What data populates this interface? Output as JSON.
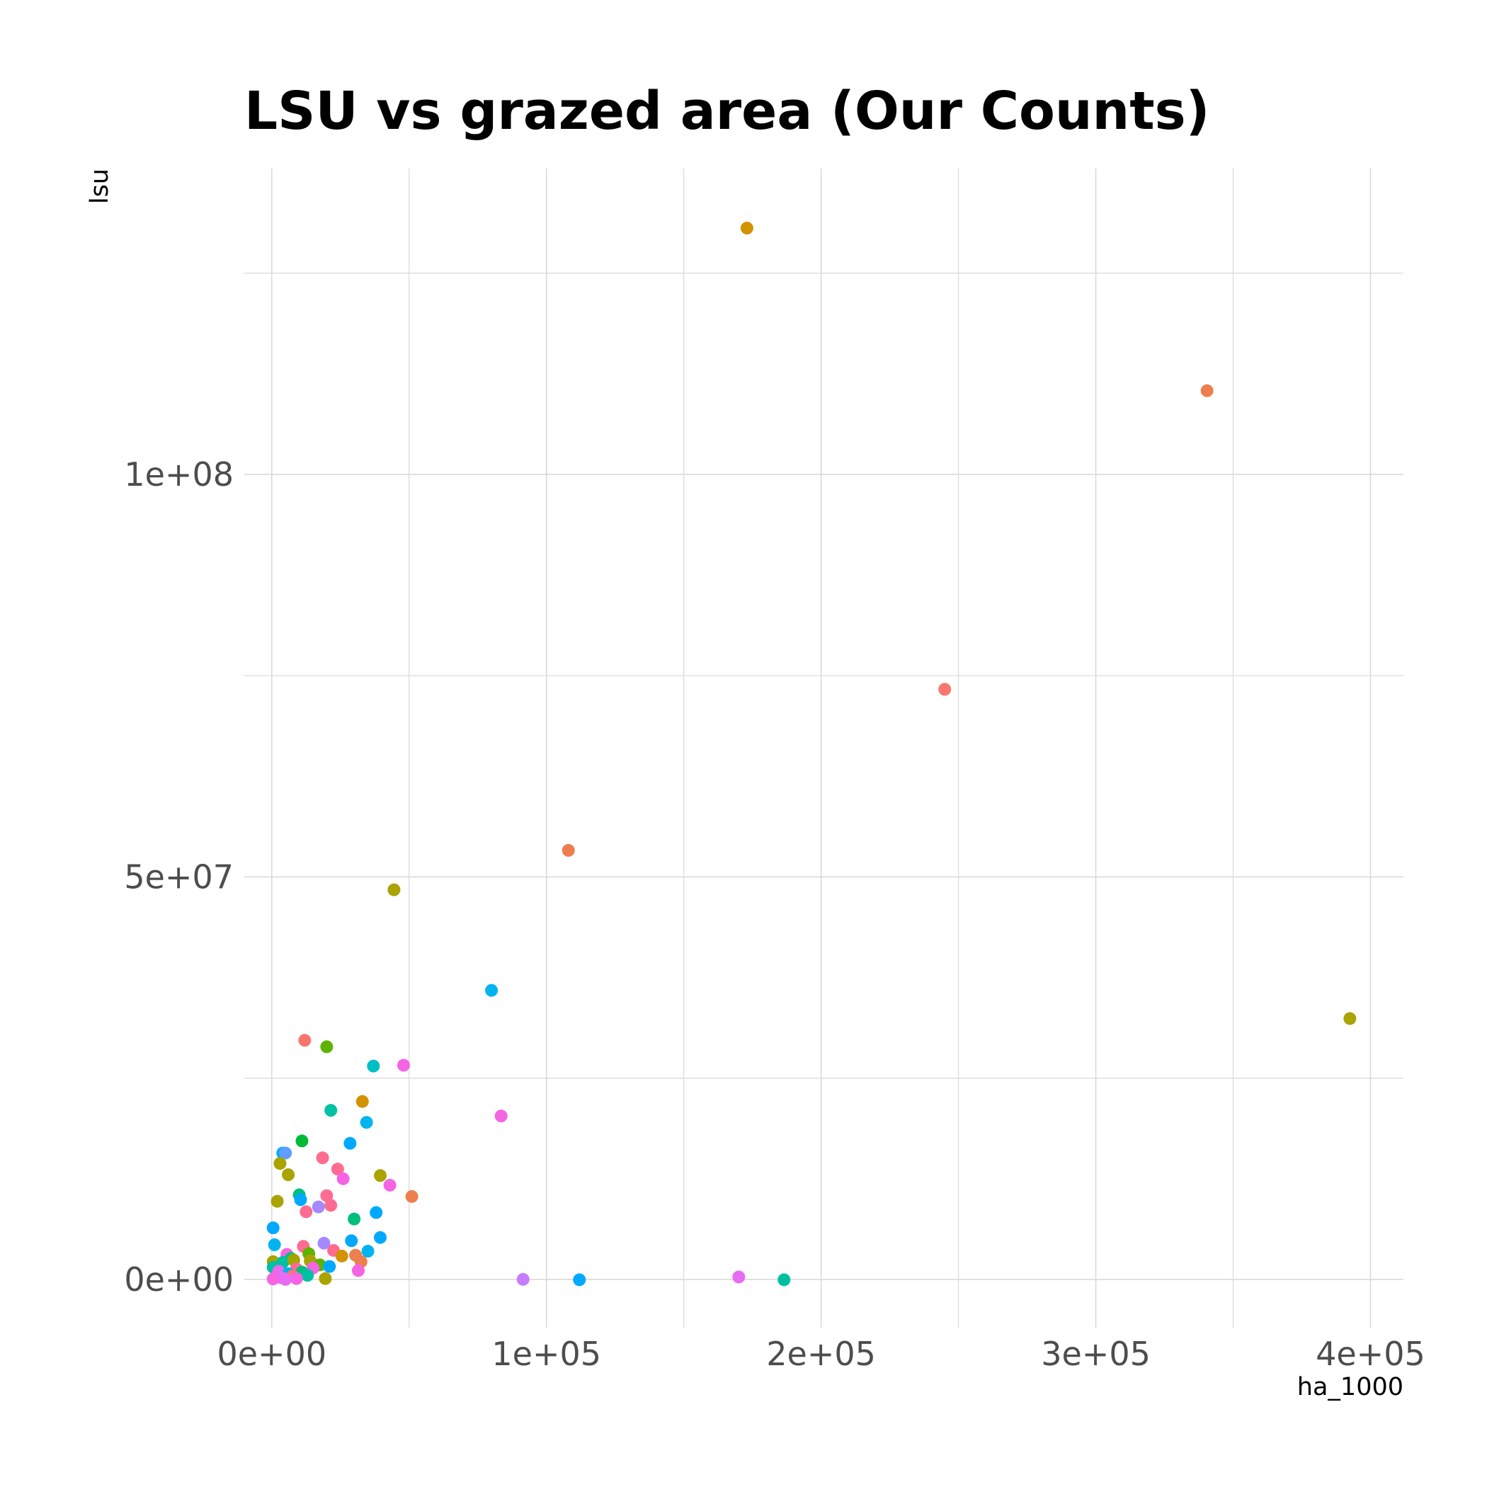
{
  "chart_data": {
    "type": "scatter",
    "title": "LSU vs grazed area (Our Counts)",
    "xlabel": "ha_1000",
    "ylabel": "lsu",
    "xlim": [
      -10000,
      412000
    ],
    "ylim": [
      -6000000,
      138000000
    ],
    "x_ticks": [
      0,
      100000,
      200000,
      300000,
      400000
    ],
    "x_tick_labels": [
      "0e+00",
      "1e+05",
      "2e+05",
      "3e+05",
      "4e+05"
    ],
    "y_ticks": [
      0,
      50000000,
      100000000
    ],
    "y_tick_labels": [
      "0e+00",
      "5e+07",
      "1e+08"
    ],
    "grid": true,
    "legend": "none",
    "points": [
      {
        "x": 173000,
        "y": 130600000,
        "color": "#D39200"
      },
      {
        "x": 340500,
        "y": 110400000,
        "color": "#EC7F4D"
      },
      {
        "x": 245000,
        "y": 73300000,
        "color": "#F8766D"
      },
      {
        "x": 108000,
        "y": 53300000,
        "color": "#EC7F4D"
      },
      {
        "x": 44500,
        "y": 48400000,
        "color": "#AAA300"
      },
      {
        "x": 80000,
        "y": 35900000,
        "color": "#00B4EF"
      },
      {
        "x": 392500,
        "y": 32400000,
        "color": "#AAA300"
      },
      {
        "x": 12000,
        "y": 29700000,
        "color": "#F8766D"
      },
      {
        "x": 20000,
        "y": 28900000,
        "color": "#5EB300"
      },
      {
        "x": 37000,
        "y": 26500000,
        "color": "#00BFC4"
      },
      {
        "x": 48000,
        "y": 26600000,
        "color": "#F564E3"
      },
      {
        "x": 33000,
        "y": 22100000,
        "color": "#D39200"
      },
      {
        "x": 21500,
        "y": 21000000,
        "color": "#00C1A3"
      },
      {
        "x": 83500,
        "y": 20300000,
        "color": "#F564E3"
      },
      {
        "x": 34500,
        "y": 19500000,
        "color": "#00B4EF"
      },
      {
        "x": 11000,
        "y": 17200000,
        "color": "#00BA38"
      },
      {
        "x": 28500,
        "y": 16900000,
        "color": "#00A9FF"
      },
      {
        "x": 4000,
        "y": 15700000,
        "color": "#00A9FF"
      },
      {
        "x": 5000,
        "y": 15700000,
        "color": "#619CFF"
      },
      {
        "x": 18500,
        "y": 15100000,
        "color": "#FF6C91"
      },
      {
        "x": 3000,
        "y": 14400000,
        "color": "#AAA300"
      },
      {
        "x": 24000,
        "y": 13700000,
        "color": "#FF6C91"
      },
      {
        "x": 6000,
        "y": 13000000,
        "color": "#AAA300"
      },
      {
        "x": 39500,
        "y": 12900000,
        "color": "#AAA300"
      },
      {
        "x": 26000,
        "y": 12500000,
        "color": "#F564E3"
      },
      {
        "x": 43000,
        "y": 11700000,
        "color": "#F564E3"
      },
      {
        "x": 10000,
        "y": 10500000,
        "color": "#00BF7D"
      },
      {
        "x": 20000,
        "y": 10400000,
        "color": "#FF6C91"
      },
      {
        "x": 51000,
        "y": 10300000,
        "color": "#EC7F4D"
      },
      {
        "x": 10500,
        "y": 9900000,
        "color": "#00A9FF"
      },
      {
        "x": 2000,
        "y": 9700000,
        "color": "#AAA300"
      },
      {
        "x": 21500,
        "y": 9200000,
        "color": "#FF6C91"
      },
      {
        "x": 17000,
        "y": 9000000,
        "color": "#A58AFF"
      },
      {
        "x": 12500,
        "y": 8400000,
        "color": "#FF6C91"
      },
      {
        "x": 38000,
        "y": 8300000,
        "color": "#00A9FF"
      },
      {
        "x": 30000,
        "y": 7500000,
        "color": "#00BF7D"
      },
      {
        "x": 500,
        "y": 6400000,
        "color": "#00A9FF"
      },
      {
        "x": 39500,
        "y": 5200000,
        "color": "#00A9FF"
      },
      {
        "x": 29000,
        "y": 4800000,
        "color": "#00A9FF"
      },
      {
        "x": 1000,
        "y": 4300000,
        "color": "#00B4EF"
      },
      {
        "x": 19000,
        "y": 4500000,
        "color": "#A58AFF"
      },
      {
        "x": 11500,
        "y": 4100000,
        "color": "#FF6C91"
      },
      {
        "x": 22500,
        "y": 3600000,
        "color": "#FF6C91"
      },
      {
        "x": 35000,
        "y": 3500000,
        "color": "#00B4EF"
      },
      {
        "x": 13500,
        "y": 3200000,
        "color": "#5EB300"
      },
      {
        "x": 25500,
        "y": 2900000,
        "color": "#D39200"
      },
      {
        "x": 30500,
        "y": 3000000,
        "color": "#EC7F4D"
      },
      {
        "x": 5500,
        "y": 3100000,
        "color": "#F564E3"
      },
      {
        "x": 7000,
        "y": 2600000,
        "color": "#00BF7D"
      },
      {
        "x": 14000,
        "y": 2300000,
        "color": "#AAA300"
      },
      {
        "x": 32500,
        "y": 2200000,
        "color": "#EC7F4D"
      },
      {
        "x": 500,
        "y": 2200000,
        "color": "#AAA300"
      },
      {
        "x": 4000,
        "y": 2100000,
        "color": "#00C1A3"
      },
      {
        "x": 8000,
        "y": 2400000,
        "color": "#A3A500"
      },
      {
        "x": 17500,
        "y": 1800000,
        "color": "#5EB300"
      },
      {
        "x": 21000,
        "y": 1600000,
        "color": "#00A9FF"
      },
      {
        "x": 15000,
        "y": 1400000,
        "color": "#F564E3"
      },
      {
        "x": 500,
        "y": 1500000,
        "color": "#00C1A3"
      },
      {
        "x": 31500,
        "y": 1100000,
        "color": "#F564E3"
      },
      {
        "x": 9000,
        "y": 1300000,
        "color": "#FF6C91"
      },
      {
        "x": 2500,
        "y": 1000000,
        "color": "#E76BF3"
      },
      {
        "x": 11000,
        "y": 900000,
        "color": "#00BF7D"
      },
      {
        "x": 6000,
        "y": 700000,
        "color": "#00B4EF"
      },
      {
        "x": 13000,
        "y": 500000,
        "color": "#00C1A3"
      },
      {
        "x": 7500,
        "y": 400000,
        "color": "#F8766D"
      },
      {
        "x": 1500,
        "y": 300000,
        "color": "#F564E3"
      },
      {
        "x": 3500,
        "y": 200000,
        "color": "#E76BF3"
      },
      {
        "x": 19500,
        "y": 100000,
        "color": "#AAA300"
      },
      {
        "x": 9000,
        "y": 100000,
        "color": "#F564E3"
      },
      {
        "x": 500,
        "y": 50000,
        "color": "#F564E3"
      },
      {
        "x": 5000,
        "y": 0,
        "color": "#E76BF3"
      },
      {
        "x": 91500,
        "y": 0,
        "color": "#C77CFF"
      },
      {
        "x": 112000,
        "y": -50000,
        "color": "#00A9FF"
      },
      {
        "x": 170000,
        "y": 300000,
        "color": "#E76BF3"
      },
      {
        "x": 186500,
        "y": -50000,
        "color": "#00BFA0"
      }
    ]
  }
}
